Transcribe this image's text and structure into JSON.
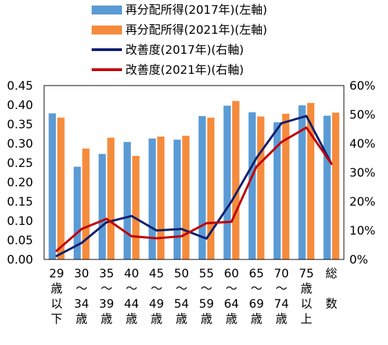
{
  "chart_data": {
    "type": "bar",
    "categories": [
      "29歳以下",
      "30～34歳",
      "35～39歳",
      "40～44歳",
      "45～49歳",
      "50～54歳",
      "55～59歳",
      "60～64歳",
      "65～69歳",
      "70～74歳",
      "75歳以上",
      "総数"
    ],
    "category_labels": [
      [
        "29",
        "歳",
        "以",
        "下"
      ],
      [
        "30",
        "～",
        "34",
        "歳"
      ],
      [
        "35",
        "～",
        "39",
        "歳"
      ],
      [
        "40",
        "～",
        "44",
        "歳"
      ],
      [
        "45",
        "～",
        "49",
        "歳"
      ],
      [
        "50",
        "～",
        "54",
        "歳"
      ],
      [
        "55",
        "～",
        "59",
        "歳"
      ],
      [
        "60",
        "～",
        "64",
        "歳"
      ],
      [
        "65",
        "～",
        "69",
        "歳"
      ],
      [
        "70",
        "～",
        "74",
        "歳"
      ],
      [
        "75",
        "歳",
        "以",
        "上"
      ],
      [
        "総",
        "",
        "数"
      ]
    ],
    "series": [
      {
        "name": "再分配所得(2017年)(左軸)",
        "kind": "bar",
        "axis": "left",
        "color": "#5b9bd5",
        "values": [
          0.378,
          0.24,
          0.273,
          0.304,
          0.313,
          0.31,
          0.371,
          0.398,
          0.381,
          0.355,
          0.399,
          0.372
        ]
      },
      {
        "name": "再分配所得(2021年)(左軸)",
        "kind": "bar",
        "axis": "left",
        "color": "#f58b3c",
        "values": [
          0.367,
          0.287,
          0.315,
          0.268,
          0.318,
          0.32,
          0.367,
          0.41,
          0.37,
          0.377,
          0.405,
          0.38
        ]
      },
      {
        "name": "改善度(2017年)(右軸)",
        "kind": "line",
        "axis": "right",
        "color": "#10206e",
        "values": [
          0.012,
          0.057,
          0.128,
          0.15,
          0.1,
          0.105,
          0.072,
          0.2,
          0.35,
          0.47,
          0.495,
          0.33
        ]
      },
      {
        "name": "改善度(2021年)(右軸)",
        "kind": "line",
        "axis": "right",
        "color": "#c00000",
        "values": [
          0.03,
          0.105,
          0.14,
          0.08,
          0.073,
          0.08,
          0.125,
          0.13,
          0.32,
          0.405,
          0.455,
          0.33
        ]
      }
    ],
    "left_axis": {
      "min": 0,
      "max": 0.45,
      "ticks": [
        "0.00",
        "0.05",
        "0.10",
        "0.15",
        "0.20",
        "0.25",
        "0.30",
        "0.35",
        "0.40",
        "0.45"
      ]
    },
    "right_axis": {
      "min": 0,
      "max": 0.6,
      "ticks": [
        "0%",
        "10%",
        "20%",
        "30%",
        "40%",
        "50%",
        "60%"
      ]
    },
    "grid": false,
    "legend": {
      "placement": "top"
    }
  }
}
